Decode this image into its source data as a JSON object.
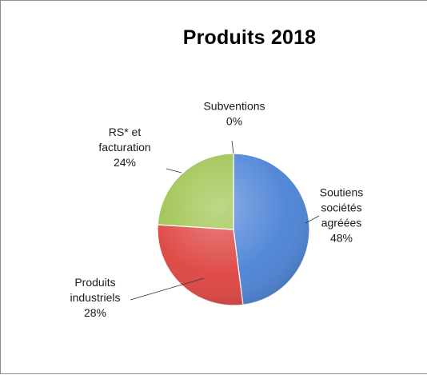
{
  "chart_data": {
    "type": "pie",
    "title": "Produits 2018",
    "slices": [
      {
        "label_lines": [
          "Soutiens",
          "sociétés",
          "agréées"
        ],
        "percent_label": "48%",
        "value": 48,
        "color": "#4a82d6"
      },
      {
        "label_lines": [
          "Produits",
          "industriels"
        ],
        "percent_label": "28%",
        "value": 28,
        "color": "#dd4340"
      },
      {
        "label_lines": [
          "RS* et",
          "facturation"
        ],
        "percent_label": "24%",
        "value": 24,
        "color": "#9bc24a"
      },
      {
        "label_lines": [
          "Subventions"
        ],
        "percent_label": "0%",
        "value": 0,
        "color": "#8064a2"
      }
    ],
    "legend": "none",
    "data_labels": "outside-with-leader-lines"
  }
}
